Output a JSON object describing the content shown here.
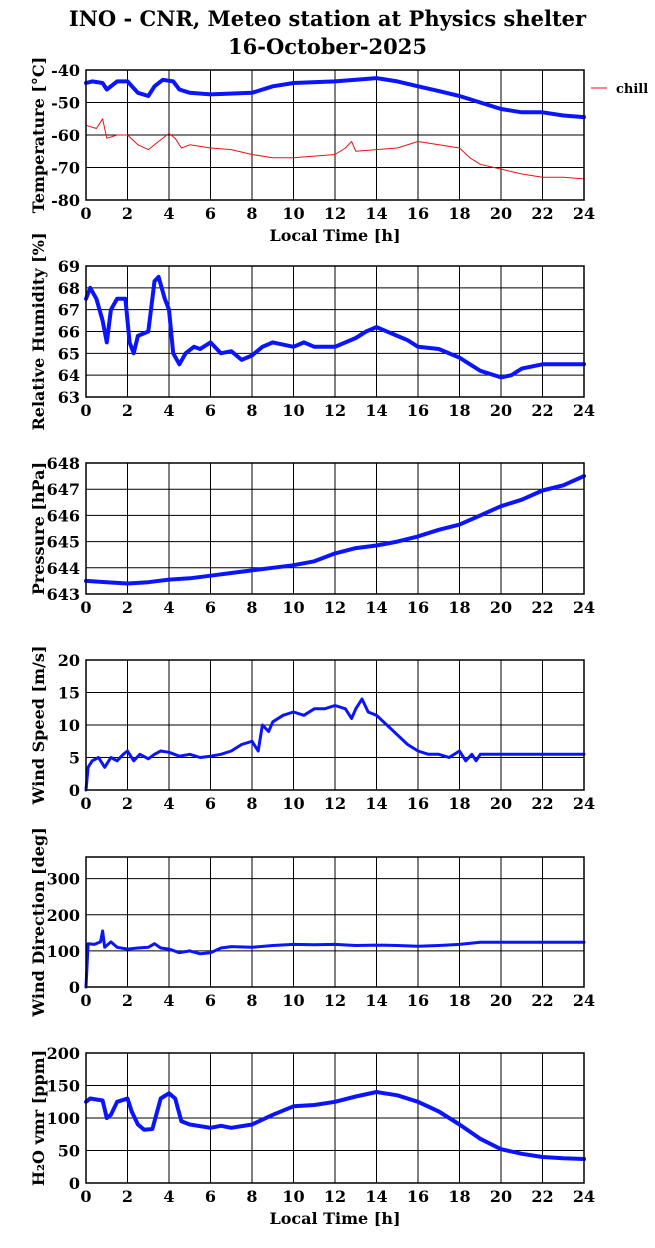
{
  "title_line1": "INO - CNR, Meteo station at Physics shelter",
  "title_line2": "16-October-2025",
  "colors": {
    "blue": "#0a14ff",
    "red": "#ee1111",
    "axis": "#000000"
  },
  "chart_data": [
    {
      "type": "line",
      "ylabel": "Temperature [°C]",
      "xlabel": "Local Time [h]",
      "xlim": [
        0,
        24
      ],
      "ylim": [
        -80,
        -40
      ],
      "yticks": [
        -80,
        -70,
        -60,
        -50,
        -40
      ],
      "xticks": [
        0,
        2,
        4,
        6,
        8,
        10,
        12,
        14,
        16,
        18,
        20,
        22,
        24
      ],
      "grid": true,
      "legend": "top-right",
      "series": [
        {
          "color": "#0a14ff",
          "width": 4,
          "x": [
            0,
            0.3,
            0.8,
            1.0,
            1.2,
            1.5,
            2.0,
            2.5,
            3.0,
            3.3,
            3.7,
            4.2,
            4.5,
            5.0,
            6.0,
            8.0,
            9.0,
            10.0,
            12.0,
            13.0,
            14.0,
            15.0,
            16.0,
            17.0,
            18.0,
            19.0,
            20.0,
            21.0,
            22.0,
            23.0,
            24.0
          ],
          "y": [
            -44,
            -43.5,
            -44,
            -46,
            -45,
            -43.5,
            -43.5,
            -47,
            -48,
            -45,
            -43,
            -43.5,
            -46,
            -47,
            -47.5,
            -47,
            -45,
            -44,
            -43.5,
            -43,
            -42.5,
            -43.5,
            -45,
            -46.5,
            -48,
            -50,
            -52,
            -53,
            -53,
            -54,
            -54.5
          ]
        },
        {
          "name": "chill",
          "color": "#ee1111",
          "width": 1,
          "x": [
            0,
            0.5,
            0.8,
            0.9,
            1.0,
            1.5,
            2.0,
            2.5,
            3.0,
            3.5,
            4.0,
            4.3,
            4.6,
            5.0,
            6.0,
            7.0,
            8.0,
            9.0,
            10.0,
            11.0,
            12.0,
            12.5,
            12.8,
            13.0,
            14.0,
            15.0,
            16.0,
            17.0,
            18.0,
            18.5,
            19.0,
            20.0,
            21.0,
            22.0,
            23.0,
            24.0
          ],
          "y": [
            -57,
            -58,
            -55,
            -58,
            -61,
            -60,
            -60,
            -63,
            -64.5,
            -62,
            -59.5,
            -61,
            -64,
            -63,
            -64,
            -64.5,
            -66,
            -67,
            -67,
            -66.5,
            -66,
            -64,
            -62,
            -65,
            -64.5,
            -64,
            -62,
            -63,
            -64,
            -67,
            -69,
            -70.5,
            -72,
            -73,
            -73,
            -73.5
          ]
        }
      ]
    },
    {
      "type": "line",
      "ylabel": "Relative Humidity [%]",
      "xlim": [
        0,
        24
      ],
      "ylim": [
        63,
        69
      ],
      "yticks": [
        63,
        64,
        65,
        66,
        67,
        68,
        69
      ],
      "xticks": [
        0,
        2,
        4,
        6,
        8,
        10,
        12,
        14,
        16,
        18,
        20,
        22,
        24
      ],
      "grid": true,
      "series": [
        {
          "color": "#0a14ff",
          "width": 4,
          "x": [
            0,
            0.2,
            0.5,
            0.8,
            1.0,
            1.2,
            1.5,
            1.9,
            2.1,
            2.3,
            2.5,
            3.0,
            3.3,
            3.5,
            3.8,
            4.0,
            4.2,
            4.5,
            4.8,
            5.2,
            5.5,
            6.0,
            6.5,
            7.0,
            7.5,
            8.0,
            8.5,
            9.0,
            10.0,
            10.5,
            11.0,
            12.0,
            13.0,
            13.5,
            14.0,
            15.0,
            15.5,
            16.0,
            17.0,
            18.0,
            19.0,
            20.0,
            20.5,
            21.0,
            22.0,
            23.0,
            24.0
          ],
          "y": [
            67.5,
            68,
            67.5,
            66.5,
            65.5,
            67,
            67.5,
            67.5,
            65.5,
            65,
            65.8,
            66,
            68.3,
            68.5,
            67.5,
            67,
            65,
            64.5,
            65,
            65.3,
            65.2,
            65.5,
            65,
            65.1,
            64.7,
            64.9,
            65.3,
            65.5,
            65.3,
            65.5,
            65.3,
            65.3,
            65.7,
            66,
            66.2,
            65.8,
            65.6,
            65.3,
            65.2,
            64.8,
            64.2,
            63.9,
            64,
            64.3,
            64.5,
            64.5,
            64.5
          ]
        }
      ]
    },
    {
      "type": "line",
      "ylabel": "Pressure [hPa]",
      "xlim": [
        0,
        24
      ],
      "ylim": [
        643,
        648
      ],
      "yticks": [
        643,
        644,
        645,
        646,
        647,
        648
      ],
      "xticks": [
        0,
        2,
        4,
        6,
        8,
        10,
        12,
        14,
        16,
        18,
        20,
        22,
        24
      ],
      "grid": true,
      "series": [
        {
          "color": "#0a14ff",
          "width": 4,
          "x": [
            0,
            1,
            2,
            3,
            4,
            5,
            6,
            7,
            8,
            9,
            10,
            11,
            12,
            13,
            14,
            15,
            16,
            17,
            18,
            19,
            20,
            21,
            22,
            23,
            24
          ],
          "y": [
            643.5,
            643.45,
            643.4,
            643.45,
            643.55,
            643.6,
            643.7,
            643.8,
            643.9,
            644.0,
            644.1,
            644.25,
            644.55,
            644.75,
            644.85,
            645.0,
            645.2,
            645.45,
            645.65,
            646.0,
            646.35,
            646.6,
            646.95,
            647.15,
            647.5
          ]
        }
      ]
    },
    {
      "type": "line",
      "ylabel": "Wind Speed [m/s]",
      "xlim": [
        0,
        24
      ],
      "ylim": [
        0,
        20
      ],
      "yticks": [
        0,
        5,
        10,
        15,
        20
      ],
      "xticks": [
        0,
        2,
        4,
        6,
        8,
        10,
        12,
        14,
        16,
        18,
        20,
        22,
        24
      ],
      "grid": true,
      "series": [
        {
          "color": "#0a14ff",
          "width": 3,
          "x": [
            0,
            0.1,
            0.3,
            0.6,
            0.9,
            1.2,
            1.5,
            1.8,
            2.0,
            2.3,
            2.6,
            3.0,
            3.3,
            3.6,
            4.0,
            4.5,
            5.0,
            5.5,
            6.0,
            6.5,
            7.0,
            7.5,
            8.0,
            8.3,
            8.5,
            8.8,
            9.0,
            9.5,
            10.0,
            10.5,
            11.0,
            11.5,
            12.0,
            12.5,
            12.8,
            13.0,
            13.3,
            13.6,
            14.0,
            14.5,
            15.0,
            15.5,
            16.0,
            16.5,
            17.0,
            17.5,
            18.0,
            18.3,
            18.6,
            18.8,
            19.0,
            20.0,
            22.0,
            24.0
          ],
          "y": [
            0,
            3.5,
            4.5,
            5,
            3.5,
            5,
            4.5,
            5.5,
            6,
            4.5,
            5.5,
            4.8,
            5.5,
            6,
            5.8,
            5.2,
            5.5,
            5,
            5.2,
            5.5,
            6,
            7,
            7.5,
            6,
            10,
            9,
            10.5,
            11.5,
            12,
            11.5,
            12.5,
            12.5,
            13,
            12.5,
            11,
            12.5,
            14,
            12,
            11.5,
            10,
            8.5,
            7,
            6,
            5.5,
            5.5,
            5,
            6,
            4.5,
            5.5,
            4.5,
            5.5,
            5.5,
            5.5,
            5.5
          ]
        }
      ]
    },
    {
      "type": "line",
      "ylabel": "Wind Direction [deg]",
      "xlim": [
        0,
        24
      ],
      "ylim": [
        0,
        360
      ],
      "yticks": [
        0,
        100,
        200,
        300
      ],
      "xticks": [
        0,
        2,
        4,
        6,
        8,
        10,
        12,
        14,
        16,
        18,
        20,
        22,
        24
      ],
      "grid": true,
      "series": [
        {
          "color": "#0a14ff",
          "width": 3,
          "x": [
            0,
            0.1,
            0.4,
            0.7,
            0.8,
            0.9,
            1.2,
            1.5,
            2.0,
            2.5,
            3.0,
            3.3,
            3.6,
            4.0,
            4.5,
            5.0,
            5.5,
            6.0,
            6.5,
            7.0,
            8.0,
            9.0,
            10.0,
            11.0,
            12.0,
            13.0,
            14.0,
            15.0,
            16.0,
            17.0,
            18.0,
            19.0,
            20.0,
            22.0,
            24.0
          ],
          "y": [
            0,
            120,
            118,
            125,
            155,
            110,
            125,
            110,
            105,
            108,
            110,
            120,
            108,
            105,
            95,
            100,
            92,
            95,
            108,
            112,
            110,
            115,
            118,
            117,
            118,
            115,
            116,
            115,
            113,
            115,
            118,
            124,
            124,
            124,
            124
          ]
        }
      ]
    },
    {
      "type": "line",
      "ylabel": "H₂O vmr [ppm]",
      "xlabel": "Local Time [h]",
      "xlim": [
        0,
        24
      ],
      "ylim": [
        0,
        200
      ],
      "yticks": [
        0,
        50,
        100,
        150,
        200
      ],
      "xticks": [
        0,
        2,
        4,
        6,
        8,
        10,
        12,
        14,
        16,
        18,
        20,
        22,
        24
      ],
      "grid": true,
      "series": [
        {
          "color": "#0a14ff",
          "width": 4,
          "x": [
            0,
            0.2,
            0.8,
            1.0,
            1.2,
            1.5,
            2.0,
            2.2,
            2.5,
            2.8,
            3.2,
            3.6,
            4.0,
            4.3,
            4.6,
            5.0,
            6.0,
            6.5,
            7.0,
            8.0,
            9.0,
            10.0,
            11.0,
            12.0,
            13.0,
            14.0,
            15.0,
            16.0,
            17.0,
            18.0,
            19.0,
            20.0,
            21.0,
            22.0,
            23.0,
            24.0
          ],
          "y": [
            125,
            130,
            127,
            100,
            105,
            125,
            130,
            110,
            90,
            82,
            83,
            130,
            138,
            130,
            95,
            90,
            85,
            88,
            85,
            90,
            105,
            118,
            120,
            125,
            133,
            140,
            135,
            125,
            110,
            90,
            68,
            52,
            45,
            40,
            38,
            37
          ]
        }
      ]
    }
  ]
}
